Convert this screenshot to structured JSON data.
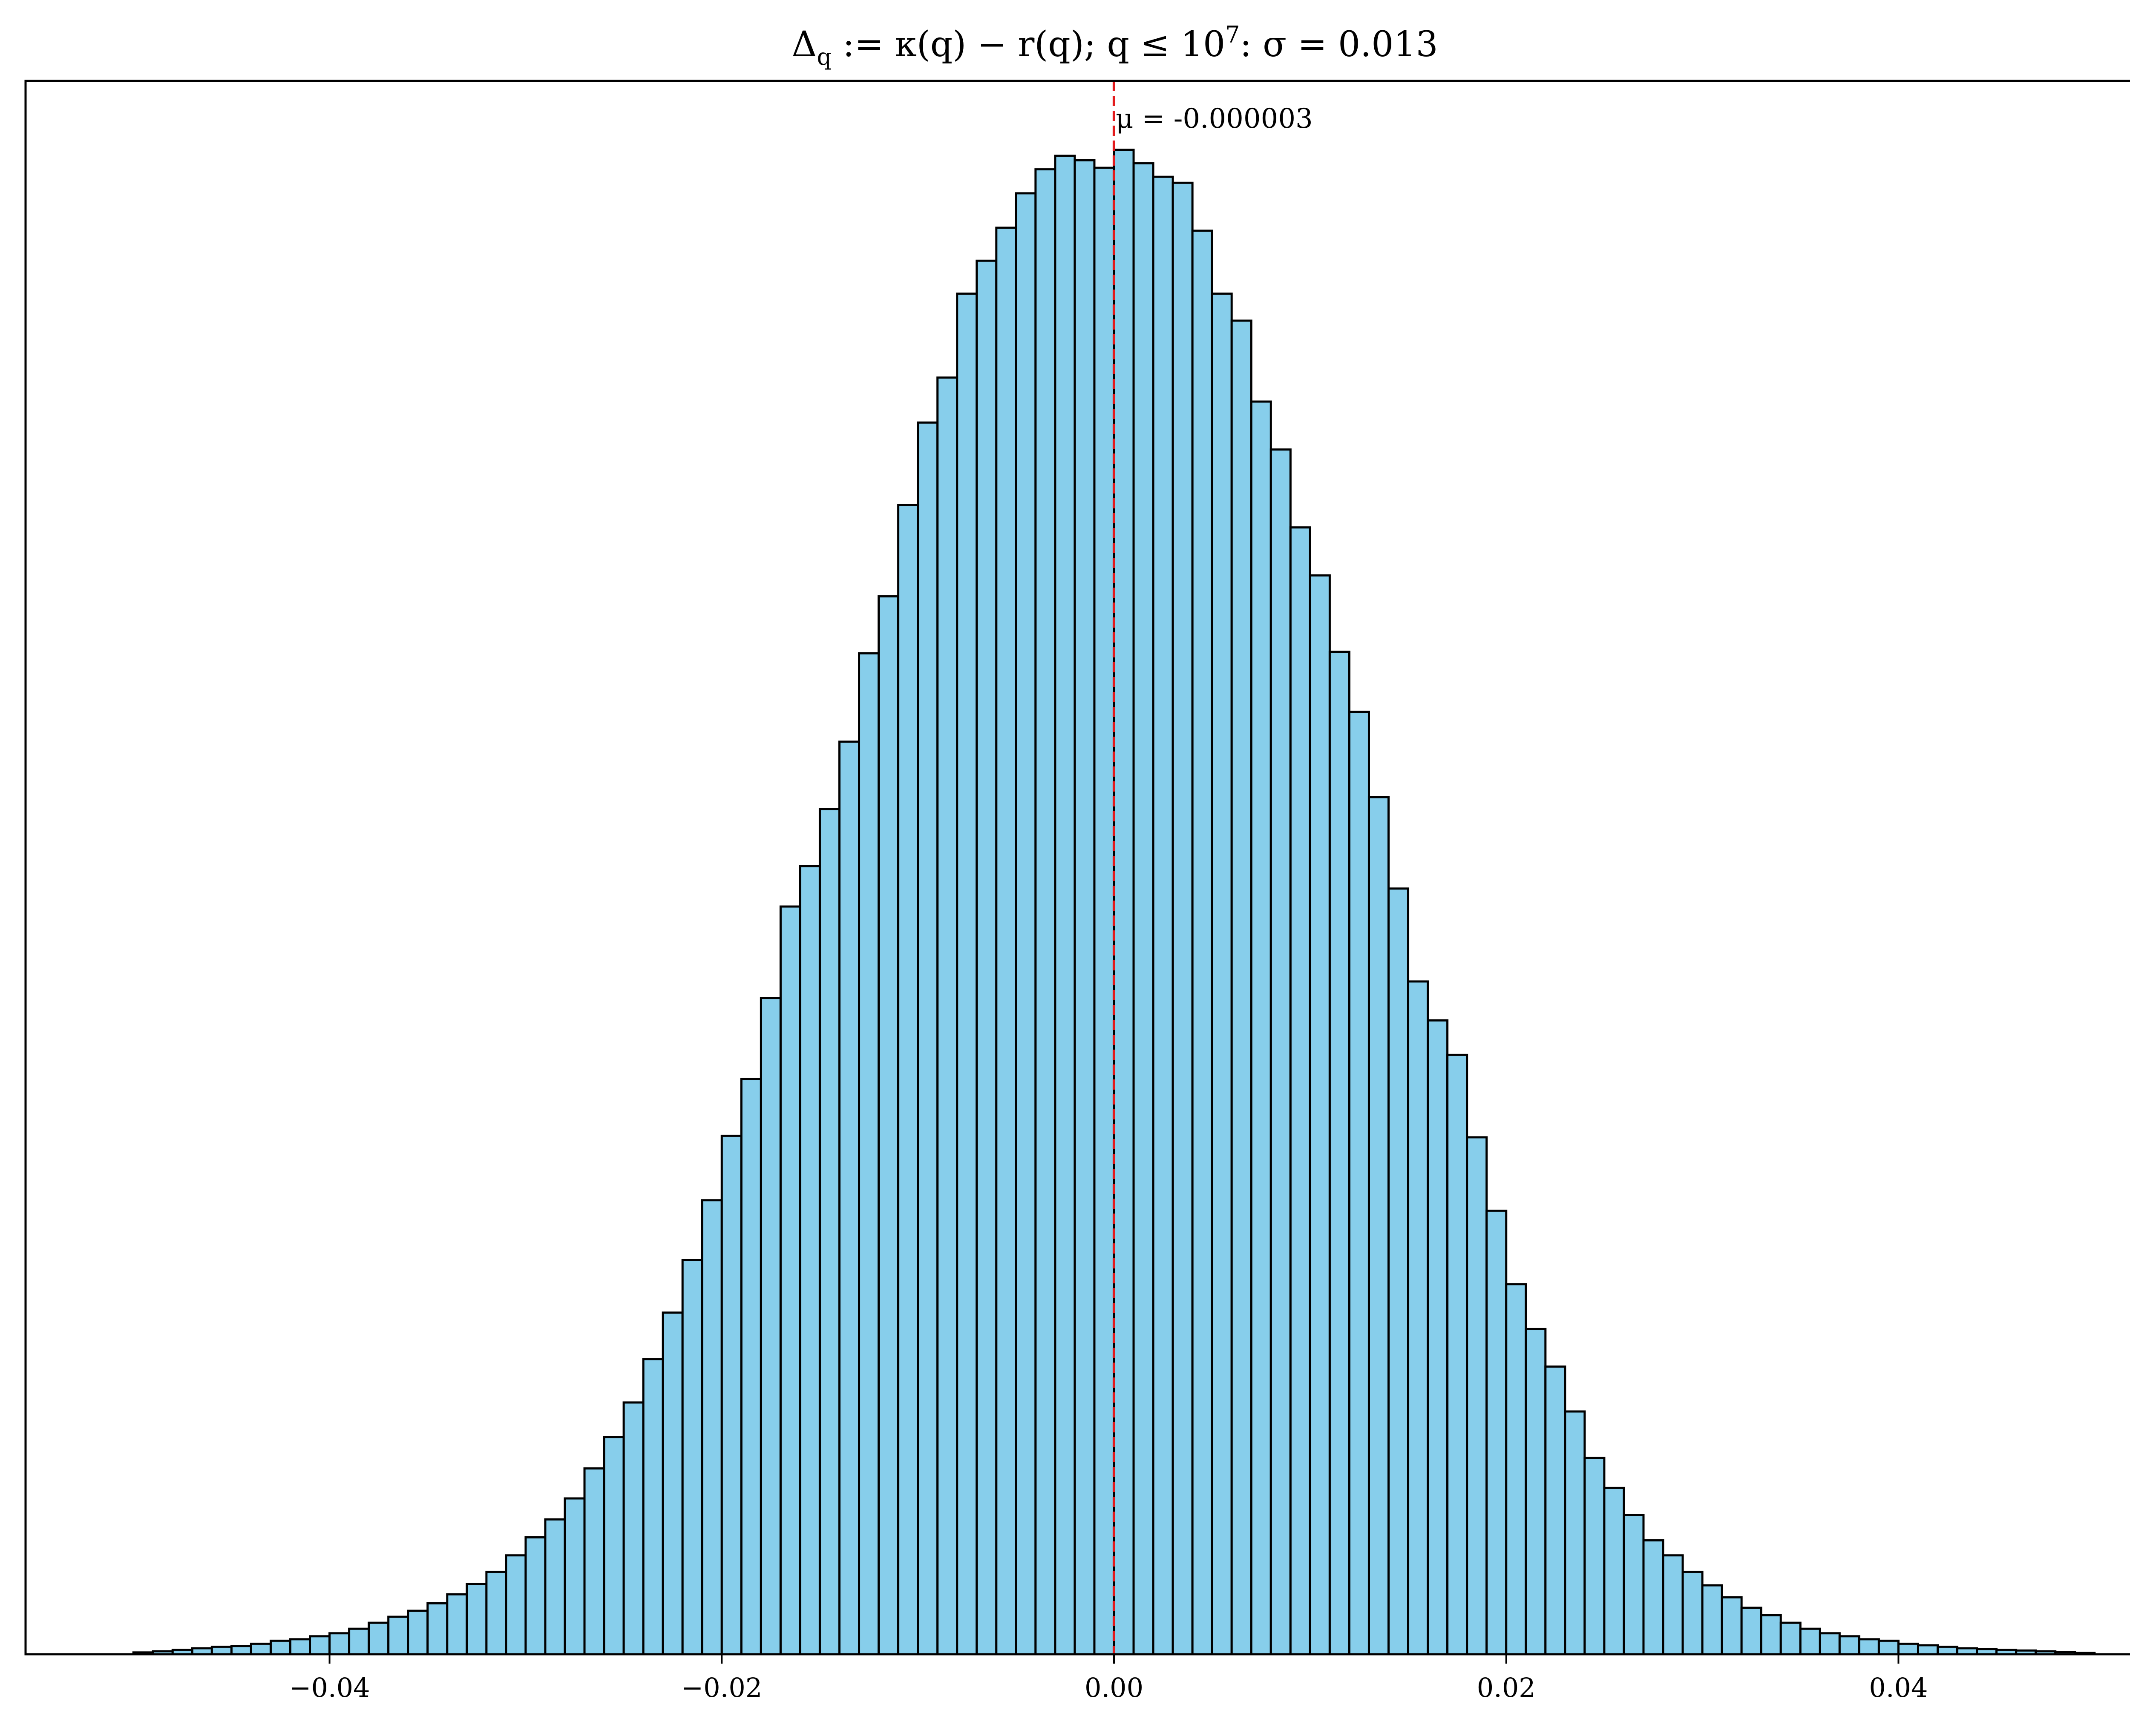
{
  "chart_data": {
    "type": "bar",
    "title": {
      "delta": "Δ",
      "delta_sub": "q",
      "definition": " := κ(q) − r(q); q ≤ 10",
      "exponent": "7",
      "tail": ":  σ = 0.013"
    },
    "xlabel": "",
    "ylabel": "",
    "xlim": [
      -0.0555,
      0.0555
    ],
    "ylim": [
      0,
      1.05
    ],
    "y_axis_visible": false,
    "bin_range": [
      -0.05,
      0.05
    ],
    "bin_count": 100,
    "values_note_units": "relative frequency (peak = 1)",
    "values": [
      0.0012,
      0.002,
      0.003,
      0.004,
      0.005,
      0.0055,
      0.007,
      0.009,
      0.01,
      0.012,
      0.014,
      0.017,
      0.021,
      0.025,
      0.029,
      0.034,
      0.04,
      0.047,
      0.055,
      0.066,
      0.078,
      0.09,
      0.104,
      0.124,
      0.145,
      0.168,
      0.197,
      0.228,
      0.263,
      0.303,
      0.346,
      0.384,
      0.438,
      0.499,
      0.526,
      0.564,
      0.609,
      0.668,
      0.706,
      0.767,
      0.822,
      0.852,
      0.908,
      0.93,
      0.952,
      0.975,
      0.991,
      1.0,
      0.997,
      0.992,
      1.004,
      0.995,
      0.986,
      0.982,
      0.95,
      0.908,
      0.89,
      0.836,
      0.804,
      0.752,
      0.72,
      0.669,
      0.629,
      0.572,
      0.511,
      0.449,
      0.423,
      0.4,
      0.345,
      0.296,
      0.247,
      0.217,
      0.192,
      0.162,
      0.131,
      0.111,
      0.093,
      0.076,
      0.066,
      0.055,
      0.046,
      0.038,
      0.031,
      0.026,
      0.021,
      0.017,
      0.014,
      0.012,
      0.01,
      0.009,
      0.007,
      0.006,
      0.005,
      0.004,
      0.0035,
      0.003,
      0.0025,
      0.002,
      0.0015,
      0.001
    ],
    "x_ticks": [
      {
        "value": -0.04,
        "label": "−0.04"
      },
      {
        "value": -0.02,
        "label": "−0.02"
      },
      {
        "value": 0.0,
        "label": "0.00"
      },
      {
        "value": 0.02,
        "label": "0.02"
      },
      {
        "value": 0.04,
        "label": "0.04"
      }
    ],
    "mean_line": {
      "value": -3e-06,
      "label": "μ = -0.000003",
      "style": "dashed",
      "color": "#e31a1c"
    },
    "colors": {
      "bar_fill": "#87ceeb",
      "bar_edge": "#000000",
      "mean_line": "#e31a1c"
    },
    "grid": false,
    "legend": "none"
  }
}
